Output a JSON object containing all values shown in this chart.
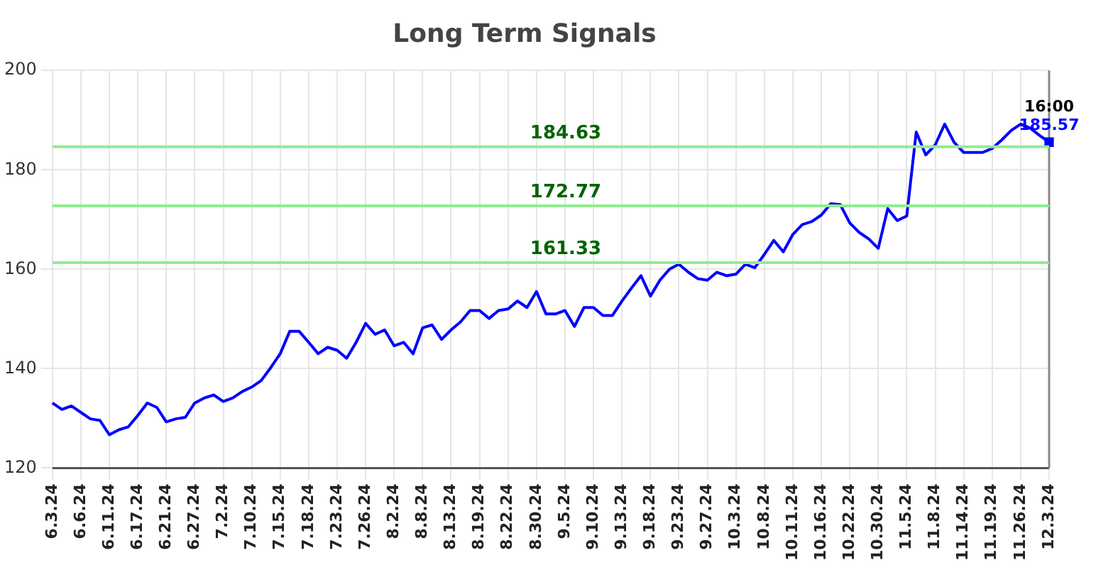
{
  "chart_data": {
    "type": "line",
    "title": "Long Term Signals",
    "categories": [
      "6.3.24",
      null,
      null,
      "6.6.24",
      null,
      null,
      "6.11.24",
      null,
      null,
      "6.17.24",
      null,
      null,
      "6.21.24",
      null,
      null,
      "6.27.24",
      null,
      null,
      "7.2.24",
      null,
      null,
      "7.10.24",
      null,
      null,
      "7.15.24",
      null,
      null,
      "7.18.24",
      null,
      null,
      "7.23.24",
      null,
      null,
      "7.26.24",
      null,
      null,
      "8.2.24",
      null,
      null,
      "8.8.24",
      null,
      null,
      "8.13.24",
      null,
      null,
      "8.19.24",
      null,
      null,
      "8.22.24",
      null,
      null,
      "8.30.24",
      null,
      null,
      "9.5.24",
      null,
      null,
      "9.10.24",
      null,
      null,
      "9.13.24",
      null,
      null,
      "9.18.24",
      null,
      null,
      "9.23.24",
      null,
      null,
      "9.27.24",
      null,
      null,
      "10.3.24",
      null,
      null,
      "10.8.24",
      null,
      null,
      "10.11.24",
      null,
      null,
      "10.16.24",
      null,
      null,
      "10.22.24",
      null,
      null,
      "10.30.24",
      null,
      null,
      "11.5.24",
      null,
      null,
      "11.8.24",
      null,
      null,
      "11.14.24",
      null,
      null,
      "11.19.24",
      null,
      null,
      "11.26.24",
      null,
      null,
      "12.3.24"
    ],
    "series": [
      {
        "color": "#0000ff",
        "values": [
          133.1,
          131.8,
          132.5,
          131.2,
          129.9,
          129.6,
          126.7,
          127.7,
          128.3,
          130.6,
          133.1,
          132.2,
          129.3,
          129.9,
          130.2,
          133.1,
          134.1,
          134.7,
          133.4,
          134.1,
          135.4,
          136.3,
          137.6,
          140.2,
          143,
          147.5,
          147.5,
          145.3,
          143,
          144.3,
          143.7,
          142.1,
          145.3,
          149.1,
          146.9,
          147.8,
          144.6,
          145.3,
          143,
          148.2,
          148.8,
          145.9,
          147.8,
          149.4,
          151.7,
          151.7,
          150.1,
          151.7,
          152,
          153.6,
          152.3,
          155.5,
          151,
          151,
          151.7,
          148.5,
          152.3,
          152.3,
          150.7,
          150.7,
          153.6,
          156.2,
          158.7,
          154.6,
          157.8,
          160,
          161,
          159.4,
          158.1,
          157.8,
          159.4,
          158.7,
          159,
          161,
          160.3,
          163,
          165.8,
          163.5,
          167,
          169,
          169.6,
          170.9,
          173.2,
          173,
          169.3,
          167.4,
          166.1,
          164.2,
          172.2,
          169.8,
          170.7,
          187.6,
          183,
          185,
          189.2,
          185.5,
          183.5,
          183.5,
          183.5,
          184.3,
          186,
          187.9,
          189.2,
          188.4,
          186.9,
          185.57
        ]
      },
      {
        "type": "scatter",
        "color": "#0000ff",
        "marker": "square",
        "x": [
          "12.3.24"
        ],
        "values": [
          185.57
        ]
      }
    ],
    "ylim": [
      120,
      200
    ],
    "yticks": [
      120,
      140,
      160,
      180,
      200
    ],
    "grid": true,
    "legend": false,
    "ref_lines": [
      {
        "axis": "y",
        "value": 184.63,
        "label": "184.63",
        "color": "#90ee90"
      },
      {
        "axis": "y",
        "value": 172.77,
        "label": "172.77",
        "color": "#90ee90"
      },
      {
        "axis": "y",
        "value": 161.33,
        "label": "161.33",
        "color": "#90ee90"
      }
    ],
    "annotations": [
      {
        "text": "16:00",
        "x": "12.3.24",
        "y": 185.57
      },
      {
        "text": "185.57",
        "x": "12.3.24",
        "y": 185.57
      }
    ]
  }
}
